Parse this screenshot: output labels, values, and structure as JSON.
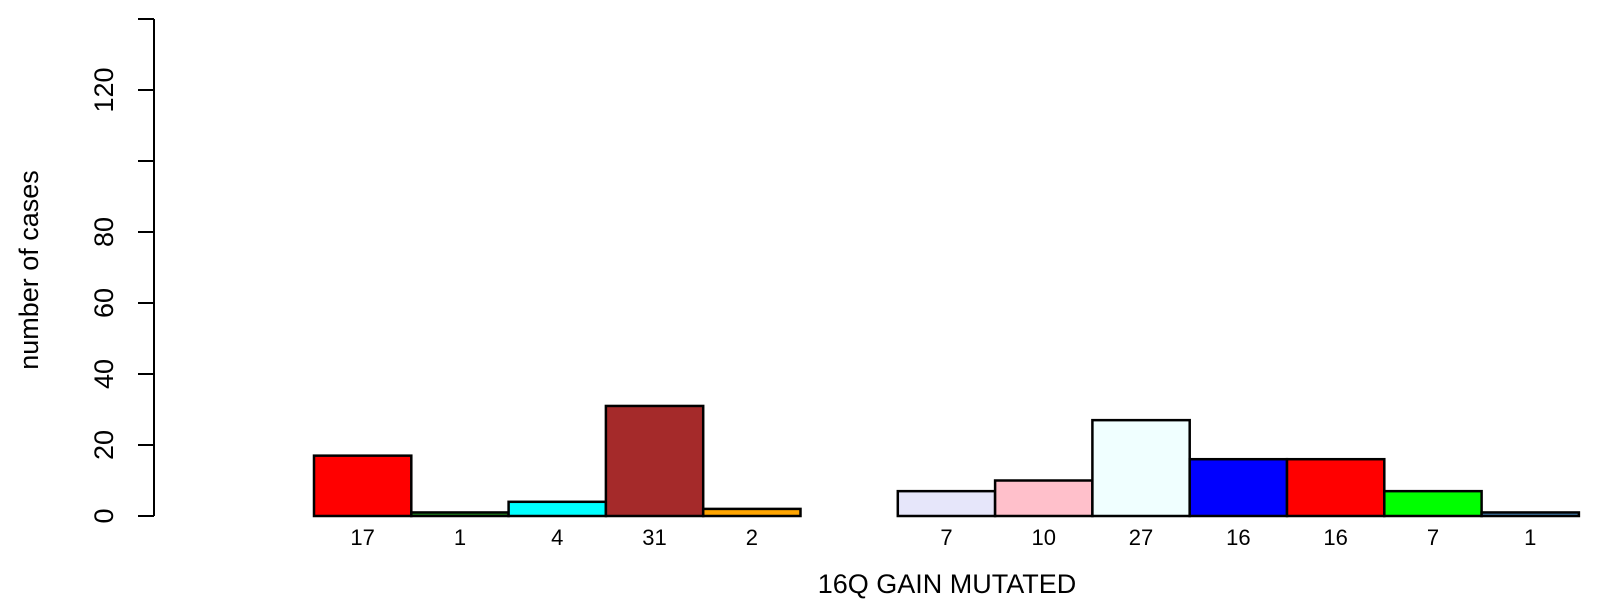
{
  "chart_data": {
    "type": "bar",
    "xlabel": "16Q GAIN MUTATED",
    "ylabel": "number of cases",
    "ylim": [
      0,
      140
    ],
    "yticks": [
      0,
      20,
      40,
      60,
      80,
      100,
      120,
      140
    ],
    "ytick_labels": [
      "0",
      "20",
      "40",
      "60",
      "80",
      "",
      "120",
      ""
    ],
    "grid": false,
    "bars": [
      {
        "value": 17,
        "label": "17",
        "color": "#ff0000"
      },
      {
        "value": 1,
        "label": "1",
        "color": "#228b22"
      },
      {
        "value": 4,
        "label": "4",
        "color": "#00ffff"
      },
      {
        "value": 31,
        "label": "31",
        "color": "#a52a2a"
      },
      {
        "value": 2,
        "label": "2",
        "color": "#ffa500"
      },
      {
        "value": 0,
        "label": "",
        "color": "#ffffff"
      },
      {
        "value": 7,
        "label": "7",
        "color": "#e6e6fa"
      },
      {
        "value": 10,
        "label": "10",
        "color": "#ffc0cb"
      },
      {
        "value": 27,
        "label": "27",
        "color": "#f0ffff"
      },
      {
        "value": 16,
        "label": "16",
        "color": "#0000ff"
      },
      {
        "value": 16,
        "label": "16",
        "color": "#ff0000"
      },
      {
        "value": 7,
        "label": "7",
        "color": "#00ff00"
      },
      {
        "value": 1,
        "label": "1",
        "color": "#4682b4"
      }
    ]
  }
}
